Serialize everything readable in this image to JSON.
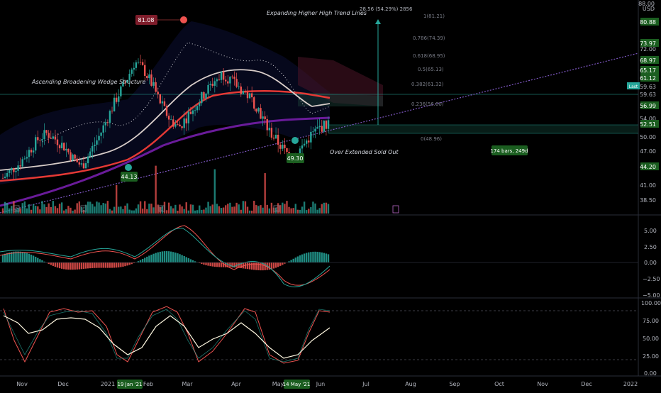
{
  "currency": "USD",
  "price_axis": {
    "ticks": [
      "88.00",
      "80.88",
      "73.97",
      "72.00",
      "68.97",
      "65.17",
      "61.12",
      "59.63",
      "59.63",
      "56.99",
      "54.00",
      "52.51",
      "50.00",
      "47.00",
      "44.20",
      "41.00",
      "38.50"
    ],
    "last_label": "Last",
    "highlight": [
      {
        "label": "80.88",
        "color": "#1b5e20"
      },
      {
        "label": "73.97",
        "color": "#1b5e20"
      },
      {
        "label": "68.97",
        "color": "#1b5e20"
      },
      {
        "label": "65.17",
        "color": "#1b5e20"
      },
      {
        "label": "61.12",
        "color": "#1b5e20"
      },
      {
        "label": "56.99",
        "color": "#1b5e20"
      },
      {
        "label": "52.51",
        "color": "#1b5e20"
      },
      {
        "label": "44.20",
        "color": "#1b5e20"
      }
    ]
  },
  "macd_axis": {
    "ticks": [
      "5.00",
      "2.50",
      "0.00",
      "−2.50",
      "−5.00"
    ]
  },
  "stoch_axis": {
    "ticks": [
      "100.00",
      "75.00",
      "50.00",
      "25.00",
      "0.00"
    ]
  },
  "time_axis": {
    "labels": [
      "Nov",
      "Dec",
      "2021",
      "Feb",
      "Mar",
      "Apr",
      "May",
      "Jun",
      "Jul",
      "Aug",
      "Sep",
      "Oct",
      "Nov",
      "Dec",
      "2022"
    ],
    "highlight_1": "19 Jan '21",
    "highlight_2": "14 May '21"
  },
  "annotations": {
    "wedge": "Ascending Broadening Wedge Structure",
    "trend": "Expanding Higher High Trend Lines",
    "sold_out": "Over Extended Sold Out",
    "high_label": "81.08",
    "low1_label": "44.13",
    "low2_label": "49.30",
    "measure": "28.56 (54.29%) 2856",
    "bars": "174 bars, 249d"
  },
  "fib_levels": [
    "1(81.21)",
    "0.786(74.39)",
    "0.618(68.95)",
    "0.5(65.13)",
    "0.382(61.32)",
    "0.236(56.60)",
    "0(48.96)"
  ],
  "colors": {
    "up": "#26a69a",
    "down": "#ef5350",
    "ma_red": "#e53935",
    "ma_purple": "#6a1b9a",
    "ma_beige": "#d7ccc8",
    "grid": "#1e222d"
  },
  "chart_data": [
    {
      "type": "candlestick",
      "title": "",
      "series": [
        {
          "name": "",
          "values": [
            45,
            47,
            49,
            52,
            55,
            56.5,
            55,
            53,
            50,
            48,
            52,
            56,
            61,
            66,
            70,
            75,
            73,
            69,
            64,
            60,
            58,
            61,
            64,
            67,
            70,
            72,
            70,
            68,
            66,
            63,
            58,
            55,
            52,
            50,
            53,
            56,
            58,
            59
          ]
        }
      ],
      "ylim": [
        36,
        90
      ]
    },
    {
      "type": "bar",
      "title": "",
      "ylim": [
        -5.5,
        6.5
      ]
    },
    {
      "type": "line",
      "title": "",
      "ylim": [
        0,
        100
      ]
    }
  ]
}
